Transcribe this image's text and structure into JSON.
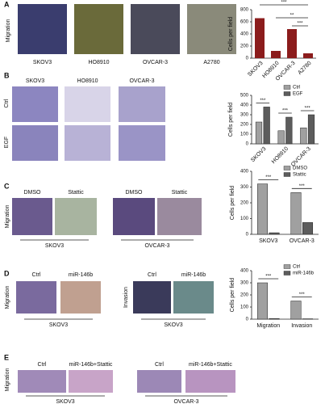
{
  "panels": [
    {
      "label": "A",
      "row_labels": [
        "Migration"
      ],
      "image_labels": [
        "SKOV3",
        "HO8910",
        "OVCAR-3",
        "A2780"
      ]
    },
    {
      "label": "B",
      "row_labels": [
        "Ctrl",
        "EGF"
      ],
      "image_labels": [
        "SKOV3",
        "HO8910",
        "OVCAR-3"
      ]
    },
    {
      "label": "C",
      "row_labels": [
        "Migration"
      ],
      "image_labels": [
        "DMSO",
        "Stattic",
        "DMSO",
        "Stattic"
      ],
      "group_labels": [
        "SKOV3",
        "OVCAR-3"
      ]
    },
    {
      "label": "D",
      "row_labels": [
        "Migration",
        "Invasion"
      ],
      "image_labels": [
        "Ctrl",
        "miR-146b",
        "Ctrl",
        "miR-146b"
      ],
      "group_labels": [
        "SKOV3",
        "SKOV3"
      ]
    },
    {
      "label": "E",
      "row_labels": [
        "Migration"
      ],
      "image_labels": [
        "Ctrl",
        "miR-146b+Stattic",
        "Ctrl",
        "miR-146b+Stattic"
      ],
      "group_labels": [
        "SKOV3",
        "OVCAR-3"
      ]
    }
  ],
  "chart_data": [
    {
      "type": "bar",
      "ylabel": "Cells per field",
      "categories": [
        "SKOV3",
        "HO8910",
        "OVCAR-3",
        "A2780"
      ],
      "values": [
        660,
        120,
        480,
        80
      ],
      "color": "#8b1c1c",
      "ylim": [
        0,
        800
      ],
      "yticks": [
        0,
        200,
        400,
        600,
        800
      ],
      "annotations": [
        "***",
        "**",
        "***"
      ]
    },
    {
      "type": "bar",
      "ylabel": "Cells per field",
      "categories": [
        "SKOV3",
        "HO8910",
        "OVCAR-3"
      ],
      "series": [
        {
          "name": "Ctrl",
          "color": "#a0a0a0",
          "values": [
            225,
            135,
            165
          ]
        },
        {
          "name": "EGF",
          "color": "#5c5c5c",
          "values": [
            380,
            275,
            300
          ]
        }
      ],
      "ylim": [
        0,
        500
      ],
      "yticks": [
        0,
        100,
        200,
        300,
        400,
        500
      ],
      "annotations": [
        "***",
        "***",
        "***"
      ]
    },
    {
      "type": "bar",
      "ylabel": "Cells per field",
      "categories": [
        "SKOV3",
        "OVCAR-3"
      ],
      "series": [
        {
          "name": "DMSO",
          "color": "#a0a0a0",
          "values": [
            320,
            265
          ]
        },
        {
          "name": "Stattic",
          "color": "#5c5c5c",
          "values": [
            10,
            75
          ]
        }
      ],
      "ylim": [
        0,
        400
      ],
      "yticks": [
        0,
        100,
        200,
        300,
        400
      ],
      "annotations": [
        "***",
        "***"
      ]
    },
    {
      "type": "bar",
      "ylabel": "Cells per field",
      "categories": [
        "Migration",
        "Invasion"
      ],
      "series": [
        {
          "name": "Ctrl",
          "color": "#a0a0a0",
          "values": [
            300,
            150
          ]
        },
        {
          "name": "miR-146b",
          "color": "#5c5c5c",
          "values": [
            5,
            3
          ]
        }
      ],
      "ylim": [
        0,
        400
      ],
      "yticks": [
        0,
        100,
        200,
        300,
        400
      ],
      "annotations": [
        "***",
        "***"
      ]
    }
  ]
}
